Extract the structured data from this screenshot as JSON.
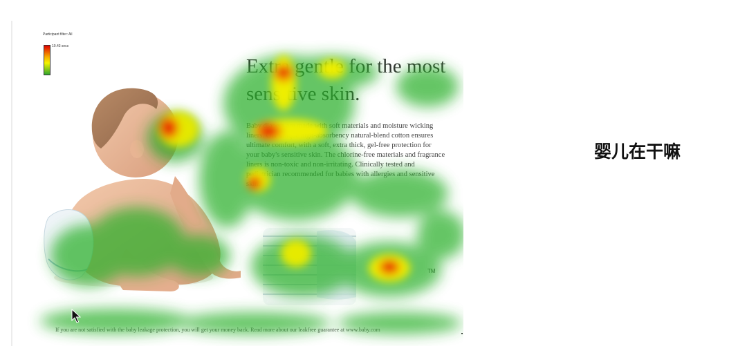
{
  "legend": {
    "filter_label": "Participant filter: All",
    "max_label": "10.43 secs",
    "colors": [
      "#e00000",
      "#f7b100",
      "#f3f300",
      "#2ea62e"
    ]
  },
  "ad": {
    "headline": "Extra gentle for the most sensitive skin.",
    "body": "Baby diapers are made with soft materials and moisture wicking liners. Our unique high-absorbency natural-blend cotton ensures ultimate comfort, with a soft, extra thick, gel-free protection for your baby's sensitive skin. The chlorine-free materials and fragrance liners is non-toxic and non-irritating. Clinically tested and pediatrician recommended for babies with allergies and sensitive skin.",
    "trademark": "TM",
    "footer": "If you are not satisfied with the baby leakage protection, you will get your money back. Read more about our leakfree guarantee at www.baby.com"
  },
  "caption": "婴儿在干嘛",
  "icons": {
    "cursor": "mouse-pointer-icon"
  }
}
